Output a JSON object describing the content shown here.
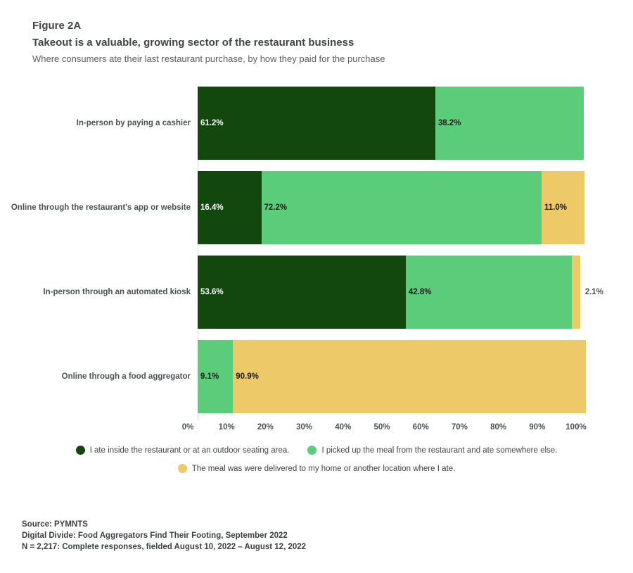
{
  "header": {
    "figure_label": "Figure 2A",
    "title": "Takeout is a valuable, growing sector of the restaurant business",
    "subtitle": "Where consumers ate their last restaurant purchase, by how they paid for the purchase"
  },
  "chart_data": {
    "type": "bar",
    "orientation": "horizontal",
    "stacked": true,
    "unit": "%",
    "xlim": [
      0,
      100
    ],
    "x_ticks": [
      "0%",
      "10%",
      "20%",
      "30%",
      "40%",
      "50%",
      "60%",
      "70%",
      "80%",
      "90%",
      "100%"
    ],
    "categories": [
      "In-person by paying a cashier",
      "Online through the restaurant's app or website",
      "In-person through an automated kiosk",
      "Online through a food aggregator"
    ],
    "series": [
      {
        "name": "I ate inside the restaurant or at an outdoor seating area.",
        "color": "#12480d",
        "label_color": "#ffffff",
        "values": [
          61.2,
          16.4,
          53.6,
          0
        ]
      },
      {
        "name": "I picked up the meal from the restaurant and ate somewhere else.",
        "color": "#5bcc79",
        "label_color": "#1c201d",
        "values": [
          38.2,
          72.2,
          42.8,
          9.1
        ]
      },
      {
        "name": "The meal was were delivered to my home or another location where I ate.",
        "color": "#edc967",
        "label_color": "#1c201d",
        "values": [
          0,
          11.0,
          2.1,
          90.9
        ]
      }
    ],
    "legend_rows": [
      [
        0,
        1
      ],
      [
        2
      ]
    ],
    "small_segment_label_threshold": 4
  },
  "source": {
    "lines": [
      "Source: PYMNTS",
      "Digital Divide: Food Aggregators Find Their Footing, September 2022",
      "N = 2,217: Complete responses, fielded August 10, 2022 – August 12, 2022"
    ]
  }
}
